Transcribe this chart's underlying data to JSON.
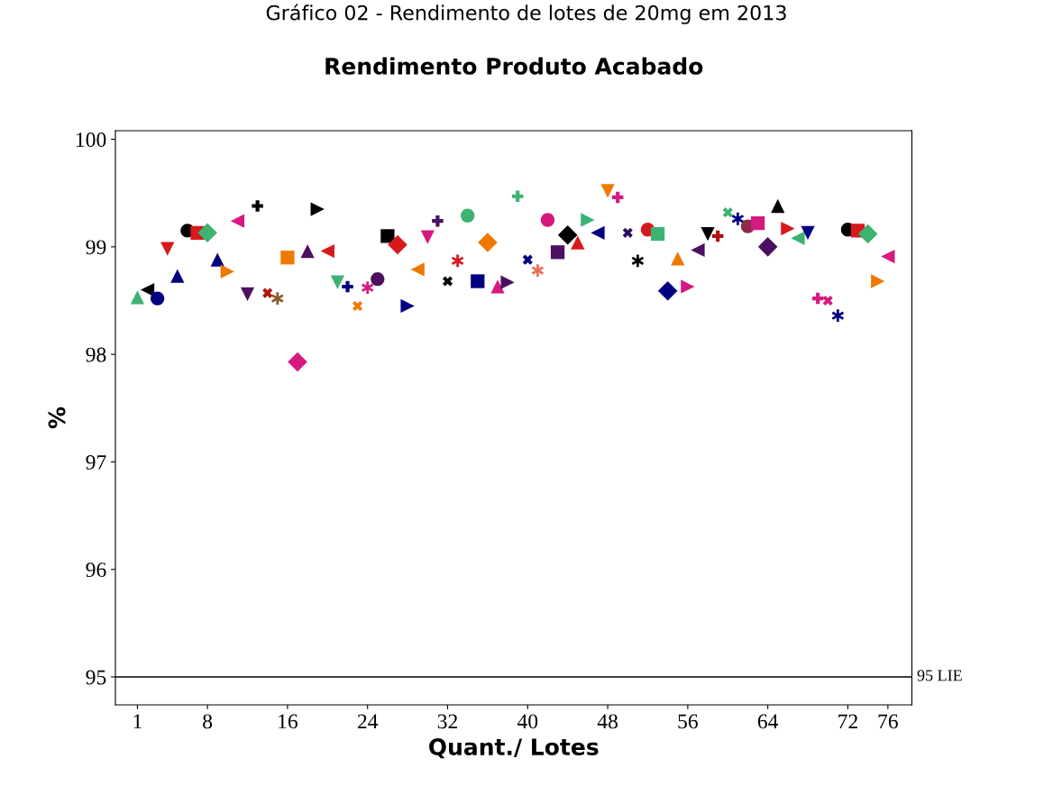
{
  "chart_data": {
    "type": "scatter",
    "title": "Gráfico 02 - Rendimento de lotes de 20mg em 2013",
    "subtitle": "Rendimento Produto Acabado",
    "xlabel": "Quant./ Lotes",
    "ylabel": "%",
    "xlim": [
      -1.2,
      78.4
    ],
    "xticks": [
      1,
      8,
      16,
      24,
      32,
      40,
      48,
      56,
      64,
      72,
      76
    ],
    "ylim": [
      94.74,
      100.08
    ],
    "yticks": [
      95,
      96,
      97,
      98,
      99,
      100
    ],
    "grid": false,
    "ref_lines": [
      {
        "axis": "y",
        "value": 95,
        "label": "95 LIE",
        "color": "#000000",
        "line_style": "solid"
      }
    ],
    "series": [
      {
        "x": [
          1
        ],
        "values": [
          98.53
        ],
        "color": "#3cb371",
        "marker": "triangle"
      },
      {
        "x": [
          2
        ],
        "values": [
          98.6
        ],
        "color": "#000000",
        "marker": "triangle-left"
      },
      {
        "x": [
          3
        ],
        "values": [
          98.52
        ],
        "color": "#000080",
        "marker": "circle"
      },
      {
        "x": [
          4
        ],
        "values": [
          98.98
        ],
        "color": "#d7191c",
        "marker": "triangle-down"
      },
      {
        "x": [
          5
        ],
        "values": [
          98.73
        ],
        "color": "#000080",
        "marker": "triangle"
      },
      {
        "x": [
          6
        ],
        "values": [
          99.15
        ],
        "color": "#000000",
        "marker": "circle"
      },
      {
        "x": [
          7
        ],
        "values": [
          99.13
        ],
        "color": "#d7191c",
        "marker": "square"
      },
      {
        "x": [
          8
        ],
        "values": [
          99.13
        ],
        "color": "#3cb371",
        "marker": "diamond"
      },
      {
        "x": [
          9
        ],
        "values": [
          98.88
        ],
        "color": "#000080",
        "marker": "triangle"
      },
      {
        "x": [
          10
        ],
        "values": [
          98.77
        ],
        "color": "#f07800",
        "marker": "triangle-right"
      },
      {
        "x": [
          11
        ],
        "values": [
          99.24
        ],
        "color": "#d6187f",
        "marker": "triangle-left"
      },
      {
        "x": [
          12
        ],
        "values": [
          98.56
        ],
        "color": "#4b1060",
        "marker": "triangle-down"
      },
      {
        "x": [
          13
        ],
        "values": [
          99.38
        ],
        "color": "#000000",
        "marker": "plus"
      },
      {
        "x": [
          14
        ],
        "values": [
          98.57
        ],
        "color": "#b01010",
        "marker": "x"
      },
      {
        "x": [
          15
        ],
        "values": [
          98.52
        ],
        "color": "#8b5a2b",
        "marker": "cross"
      },
      {
        "x": [
          16
        ],
        "values": [
          98.9
        ],
        "color": "#f07800",
        "marker": "square"
      },
      {
        "x": [
          17
        ],
        "values": [
          97.93
        ],
        "color": "#d6187f",
        "marker": "diamond"
      },
      {
        "x": [
          18
        ],
        "values": [
          98.96
        ],
        "color": "#4b1060",
        "marker": "triangle"
      },
      {
        "x": [
          19
        ],
        "values": [
          99.35
        ],
        "color": "#000000",
        "marker": "triangle-right"
      },
      {
        "x": [
          20
        ],
        "values": [
          98.96
        ],
        "color": "#d7191c",
        "marker": "triangle-left"
      },
      {
        "x": [
          21
        ],
        "values": [
          98.67
        ],
        "color": "#3cb371",
        "marker": "triangle-down"
      },
      {
        "x": [
          22
        ],
        "values": [
          98.63
        ],
        "color": "#000080",
        "marker": "plus"
      },
      {
        "x": [
          23
        ],
        "values": [
          98.45
        ],
        "color": "#f07800",
        "marker": "x"
      },
      {
        "x": [
          24
        ],
        "values": [
          98.62
        ],
        "color": "#d6187f",
        "marker": "cross"
      },
      {
        "x": [
          25
        ],
        "values": [
          98.7
        ],
        "color": "#4b1060",
        "marker": "circle"
      },
      {
        "x": [
          26
        ],
        "values": [
          99.1
        ],
        "color": "#000000",
        "marker": "square"
      },
      {
        "x": [
          27
        ],
        "values": [
          99.02
        ],
        "color": "#d7191c",
        "marker": "diamond"
      },
      {
        "x": [
          28
        ],
        "values": [
          98.45
        ],
        "color": "#000080",
        "marker": "triangle-right"
      },
      {
        "x": [
          29
        ],
        "values": [
          98.79
        ],
        "color": "#f07800",
        "marker": "triangle-left"
      },
      {
        "x": [
          30
        ],
        "values": [
          99.09
        ],
        "color": "#d6187f",
        "marker": "triangle-down"
      },
      {
        "x": [
          31
        ],
        "values": [
          99.24
        ],
        "color": "#4b1060",
        "marker": "plus"
      },
      {
        "x": [
          32
        ],
        "values": [
          98.68
        ],
        "color": "#000000",
        "marker": "x"
      },
      {
        "x": [
          33
        ],
        "values": [
          98.87
        ],
        "color": "#d7191c",
        "marker": "cross"
      },
      {
        "x": [
          34
        ],
        "values": [
          99.29
        ],
        "color": "#3cb371",
        "marker": "circle"
      },
      {
        "x": [
          35
        ],
        "values": [
          98.68
        ],
        "color": "#000080",
        "marker": "square"
      },
      {
        "x": [
          36
        ],
        "values": [
          99.04
        ],
        "color": "#f07800",
        "marker": "diamond"
      },
      {
        "x": [
          37
        ],
        "values": [
          98.63
        ],
        "color": "#d6187f",
        "marker": "triangle"
      },
      {
        "x": [
          38
        ],
        "values": [
          98.67
        ],
        "color": "#4b1060",
        "marker": "triangle-right"
      },
      {
        "x": [
          39
        ],
        "values": [
          99.47
        ],
        "color": "#3cb371",
        "marker": "plus"
      },
      {
        "x": [
          40
        ],
        "values": [
          98.88
        ],
        "color": "#000080",
        "marker": "x"
      },
      {
        "x": [
          41
        ],
        "values": [
          98.78
        ],
        "color": "#e8705a",
        "marker": "cross"
      },
      {
        "x": [
          42
        ],
        "values": [
          99.25
        ],
        "color": "#d6187f",
        "marker": "circle"
      },
      {
        "x": [
          43
        ],
        "values": [
          98.95
        ],
        "color": "#4b1060",
        "marker": "square"
      },
      {
        "x": [
          44
        ],
        "values": [
          99.11
        ],
        "color": "#000000",
        "marker": "diamond"
      },
      {
        "x": [
          45
        ],
        "values": [
          99.04
        ],
        "color": "#d7191c",
        "marker": "triangle"
      },
      {
        "x": [
          46
        ],
        "values": [
          99.25
        ],
        "color": "#3cb371",
        "marker": "triangle-right"
      },
      {
        "x": [
          47
        ],
        "values": [
          99.13
        ],
        "color": "#000080",
        "marker": "triangle-left"
      },
      {
        "x": [
          48
        ],
        "values": [
          99.52
        ],
        "color": "#f07800",
        "marker": "triangle-down"
      },
      {
        "x": [
          49
        ],
        "values": [
          99.46
        ],
        "color": "#d6187f",
        "marker": "plus"
      },
      {
        "x": [
          50
        ],
        "values": [
          99.13
        ],
        "color": "#2a1060",
        "marker": "x"
      },
      {
        "x": [
          51
        ],
        "values": [
          98.87
        ],
        "color": "#000000",
        "marker": "cross"
      },
      {
        "x": [
          52
        ],
        "values": [
          99.16
        ],
        "color": "#d7191c",
        "marker": "circle"
      },
      {
        "x": [
          53
        ],
        "values": [
          99.12
        ],
        "color": "#3cb371",
        "marker": "square"
      },
      {
        "x": [
          54
        ],
        "values": [
          98.59
        ],
        "color": "#000080",
        "marker": "diamond"
      },
      {
        "x": [
          55
        ],
        "values": [
          98.89
        ],
        "color": "#f07800",
        "marker": "triangle"
      },
      {
        "x": [
          56
        ],
        "values": [
          98.63
        ],
        "color": "#d6187f",
        "marker": "triangle-right"
      },
      {
        "x": [
          57
        ],
        "values": [
          98.97
        ],
        "color": "#4b1060",
        "marker": "triangle-left"
      },
      {
        "x": [
          58
        ],
        "values": [
          99.12
        ],
        "color": "#000000",
        "marker": "triangle-down"
      },
      {
        "x": [
          59
        ],
        "values": [
          99.1
        ],
        "color": "#b01010",
        "marker": "plus"
      },
      {
        "x": [
          60
        ],
        "values": [
          99.32
        ],
        "color": "#3cb371",
        "marker": "x"
      },
      {
        "x": [
          61
        ],
        "values": [
          99.26
        ],
        "color": "#000080",
        "marker": "cross"
      },
      {
        "x": [
          62
        ],
        "values": [
          99.19
        ],
        "color": "#8b2a4a",
        "marker": "circle"
      },
      {
        "x": [
          63
        ],
        "values": [
          99.22
        ],
        "color": "#d6187f",
        "marker": "square"
      },
      {
        "x": [
          64
        ],
        "values": [
          99.0
        ],
        "color": "#4b1060",
        "marker": "diamond"
      },
      {
        "x": [
          65
        ],
        "values": [
          99.38
        ],
        "color": "#000000",
        "marker": "triangle"
      },
      {
        "x": [
          66
        ],
        "values": [
          99.17
        ],
        "color": "#d7191c",
        "marker": "triangle-right"
      },
      {
        "x": [
          67
        ],
        "values": [
          99.08
        ],
        "color": "#3cb371",
        "marker": "triangle-left"
      },
      {
        "x": [
          68
        ],
        "values": [
          99.13
        ],
        "color": "#000080",
        "marker": "triangle-down"
      },
      {
        "x": [
          69
        ],
        "values": [
          98.52
        ],
        "color": "#d6187f",
        "marker": "plus"
      },
      {
        "x": [
          70
        ],
        "values": [
          98.5
        ],
        "color": "#d6187f",
        "marker": "x"
      },
      {
        "x": [
          71
        ],
        "values": [
          98.36
        ],
        "color": "#000080",
        "marker": "cross"
      },
      {
        "x": [
          72
        ],
        "values": [
          99.16
        ],
        "color": "#000000",
        "marker": "circle"
      },
      {
        "x": [
          73
        ],
        "values": [
          99.15
        ],
        "color": "#d7191c",
        "marker": "square"
      },
      {
        "x": [
          74
        ],
        "values": [
          99.12
        ],
        "color": "#3cb371",
        "marker": "diamond"
      },
      {
        "x": [
          75
        ],
        "values": [
          98.68
        ],
        "color": "#f07800",
        "marker": "triangle-right"
      },
      {
        "x": [
          76
        ],
        "values": [
          98.91
        ],
        "color": "#d6187f",
        "marker": "triangle-left"
      }
    ]
  }
}
